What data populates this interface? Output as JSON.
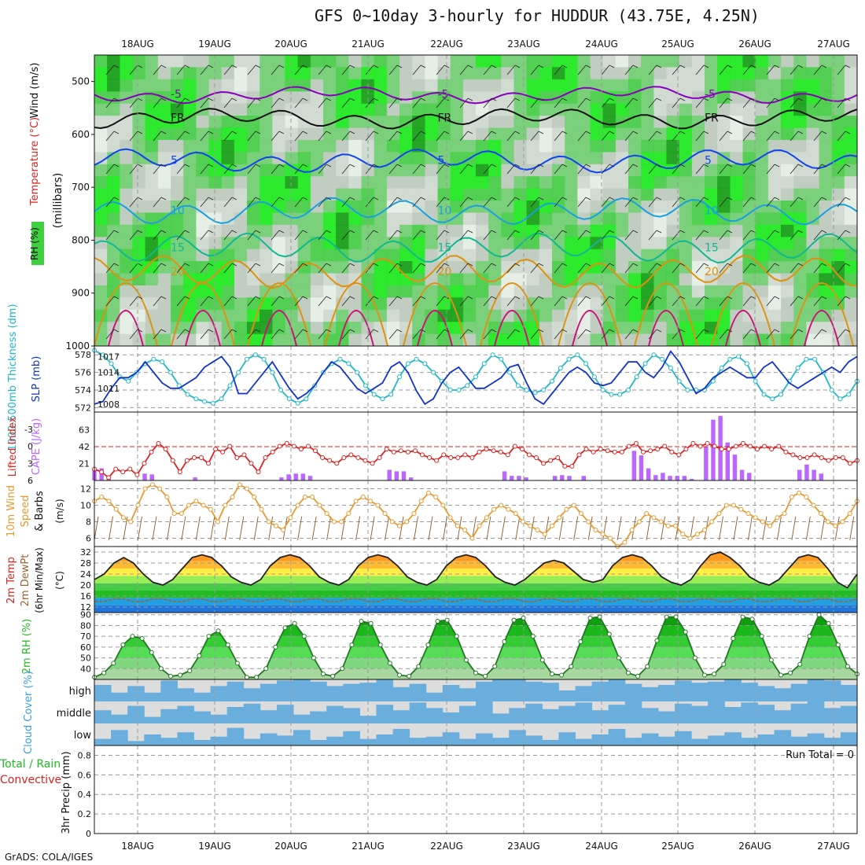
{
  "title": "GFS 0~10day 3-hourly for HUDDUR (43.75E, 4.25N)",
  "credit": "GrADS: COLA/IGES",
  "dates": [
    "18AUG",
    "19AUG",
    "20AUG",
    "21AUG",
    "22AUG",
    "23AUG",
    "24AUG",
    "25AUG",
    "26AUG",
    "27AUG"
  ],
  "chart_data": [
    {
      "type": "heatmap",
      "panel": "upper-air",
      "title": "",
      "ylabel": "(millibars)",
      "ylabel_parts": [
        "Wind (m/s)",
        "Temperature (°C)",
        "RH (%)"
      ],
      "yticks": [
        500,
        600,
        700,
        800,
        900,
        1000
      ],
      "ylim": [
        1000,
        450
      ],
      "rh_fill_colors": [
        "#ecf5ec",
        "#d3ddd3",
        "#c0ccc0",
        "#6fd16f",
        "#3fcf3f",
        "#14ee14",
        "#0a9c0a"
      ],
      "isotherms": [
        {
          "label": "-5",
          "level_mb": 525,
          "color": "#8800bb"
        },
        {
          "label": "FR",
          "level_mb": 570,
          "color": "#111111"
        },
        {
          "label": "5",
          "level_mb": 650,
          "color": "#1144ee"
        },
        {
          "label": "10",
          "level_mb": 745,
          "color": "#1aa0e0"
        },
        {
          "label": "15",
          "level_mb": 815,
          "color": "#10b890"
        },
        {
          "label": "20",
          "level_mb": 860,
          "color": "#e09010"
        }
      ]
    },
    {
      "type": "line",
      "panel": "thickness-slp",
      "ylabel_left": "1000-500mb Thickness (dm)",
      "ylabel_right": "SLP (mb)",
      "left_ticks": [
        572,
        574,
        576,
        578
      ],
      "right_ticks": [
        1008,
        1011,
        1014,
        1017
      ],
      "series": [
        {
          "name": "1000-500mb Thickness (dm)",
          "color": "#20b8c8",
          "values": [
            578.5,
            578.0,
            577.0,
            575.5,
            575.0,
            576.0,
            577.0,
            577.5,
            577.2,
            576.0,
            574.5,
            573.5,
            573.0,
            572.7,
            572.5,
            573.0,
            574.5,
            576.0,
            577.5,
            578.0,
            577.5,
            576.0,
            574.0,
            573.0,
            572.5,
            573.0,
            574.5,
            576.0,
            577.0,
            577.5,
            577.0,
            576.0,
            574.5,
            573.5,
            573.0,
            573.5,
            575.5,
            577.0,
            577.5,
            577.0,
            576.0,
            575.0,
            574.0,
            574.0,
            574.5,
            575.5,
            577.0,
            578.0,
            577.5,
            576.0,
            574.5,
            574.0,
            573.7,
            574.0,
            575.0,
            576.5,
            577.5,
            578.0,
            577.0,
            575.5,
            574.0,
            573.5,
            573.5,
            574.0,
            575.5,
            577.0,
            578.0,
            577.5,
            576.5,
            575.0,
            574.0,
            574.0,
            574.0,
            575.0,
            576.5,
            577.5,
            577.8,
            577.0,
            575.0,
            573.5,
            573.0,
            573.5,
            575.0,
            576.5,
            577.5,
            577.5,
            576.0,
            574.0,
            573.0,
            573.5,
            575.0
          ]
        },
        {
          "name": "SLP (mb)",
          "color": "#1133cc",
          "values": [
            1008.0,
            1008.5,
            1011.0,
            1013.0,
            1013.0,
            1014.0,
            1016.0,
            1014.0,
            1012.0,
            1011.0,
            1011.0,
            1012.0,
            1013.0,
            1015.0,
            1016.0,
            1017.0,
            1015.0,
            1010.0,
            1010.0,
            1012.0,
            1014.0,
            1016.0,
            1013.5,
            1011.0,
            1009.0,
            1010.0,
            1011.5,
            1014.0,
            1016.0,
            1015.0,
            1013.0,
            1011.0,
            1010.0,
            1011.0,
            1012.0,
            1015.0,
            1016.0,
            1014.0,
            1010.5,
            1008.0,
            1009.0,
            1012.0,
            1014.0,
            1015.0,
            1013.0,
            1011.0,
            1011.0,
            1012.0,
            1013.0,
            1015.0,
            1015.5,
            1012.0,
            1009.0,
            1008.0,
            1010.0,
            1012.0,
            1014.0,
            1015.0,
            1014.0,
            1012.0,
            1011.5,
            1012.0,
            1014.0,
            1016.0,
            1016.0,
            1014.0,
            1013.0,
            1015.0,
            1018.0,
            1016.0,
            1013.0,
            1010.0,
            1011.0,
            1013.0,
            1014.0,
            1015.0,
            1014.0,
            1013.0,
            1013.0,
            1015.0,
            1016.0,
            1014.0,
            1012.0,
            1011.0,
            1012.0,
            1013.0,
            1014.0,
            1015.0,
            1014.0,
            1016.0,
            1017.0
          ]
        }
      ]
    },
    {
      "type": "bar",
      "panel": "cape-li",
      "ylabel_left": "Lifted Index",
      "ylabel_right": "CAPE (J/kg)",
      "li_ticks": [
        "-3",
        "0",
        "3",
        "6"
      ],
      "cape_ticks": [
        "21",
        "42",
        "63"
      ],
      "series": [
        {
          "name": "CAPE (J/kg)",
          "color": "#bb66ff",
          "values": [
            14,
            16,
            2,
            0,
            0,
            0,
            0,
            9,
            8,
            0,
            0,
            0,
            0,
            0,
            4,
            0,
            0,
            0,
            0,
            0,
            0,
            0,
            0,
            0,
            0,
            0,
            4,
            8,
            9,
            9,
            6,
            0,
            0,
            0,
            0,
            0,
            0,
            0,
            0,
            0,
            0,
            14,
            12,
            12,
            4,
            0,
            0,
            0,
            0,
            0,
            0,
            0,
            0,
            0,
            0,
            0,
            0,
            12,
            6,
            6,
            4,
            0,
            0,
            0,
            6,
            7,
            6,
            0,
            6,
            0,
            0,
            0,
            0,
            0,
            0,
            39,
            33,
            16,
            7,
            10,
            6,
            6,
            6,
            2,
            0,
            45,
            80,
            85,
            50,
            34,
            14,
            10,
            0,
            0,
            0,
            0,
            0,
            0,
            14,
            21,
            14,
            9,
            0,
            0,
            0,
            0,
            0
          ]
        },
        {
          "name": "Lifted Index",
          "color": "#dd2222",
          "values": [
            4.0,
            4.5,
            5.5,
            4.0,
            4.5,
            4.0,
            5.0,
            3.0,
            1.0,
            -0.5,
            0.5,
            2.5,
            4.5,
            2.5,
            2.0,
            2.0,
            3.0,
            0.5,
            1.0,
            0.0,
            2.0,
            1.5,
            3.0,
            4.5,
            2.0,
            1.0,
            0.0,
            -0.5,
            0.0,
            0.5,
            0.0,
            0.8,
            2.0,
            2.5,
            3.0,
            2.0,
            1.5,
            2.0,
            2.5,
            3.0,
            2.0,
            0.5,
            1.0,
            0.8,
            1.0,
            0.8,
            1.5,
            2.0,
            2.5,
            1.5,
            2.0,
            2.0,
            1.5,
            2.0,
            1.0,
            0.5,
            0.8,
            1.0,
            1.5,
            0.0,
            0.5,
            1.5,
            2.0,
            3.0,
            2.5,
            2.0,
            3.5,
            3.5,
            1.5,
            0.5,
            1.0,
            0.5,
            0.8,
            1.0,
            1.0,
            0.0,
            -0.5,
            1.0,
            0.8,
            0.5,
            0.0,
            1.0,
            1.5,
            0.5,
            -0.5,
            0.0,
            -0.5,
            0.0,
            0.5,
            0.5,
            0.0,
            -0.5,
            0.0,
            0.5,
            0.0,
            0.5,
            0.0,
            1.0,
            1.5,
            2.0,
            2.0,
            1.5,
            2.0,
            2.5,
            2.0,
            2.0,
            3.0,
            2.5
          ]
        }
      ]
    },
    {
      "type": "line",
      "panel": "wind",
      "ylabel": "10m Wind Speed & Barbs (m/s)",
      "ylabel_parts": [
        "10m Wind",
        "Speed",
        "& Barbs",
        "(m/s)"
      ],
      "yticks": [
        6,
        8,
        10,
        12
      ],
      "ylim": [
        5,
        13
      ],
      "series": [
        {
          "name": "10m Wind Speed",
          "color": "#e89a30",
          "values": [
            10.5,
            11.0,
            10.5,
            9.5,
            8.5,
            8.0,
            10.0,
            12.0,
            12.5,
            12.0,
            11.0,
            9.0,
            9.0,
            10.0,
            10.5,
            10.0,
            9.5,
            8.0,
            10.0,
            11.0,
            12.5,
            12.0,
            11.0,
            9.5,
            8.0,
            7.5,
            7.0,
            8.5,
            10.0,
            11.0,
            11.0,
            10.0,
            9.0,
            8.0,
            8.0,
            9.0,
            10.5,
            11.0,
            10.5,
            10.0,
            9.0,
            8.0,
            7.5,
            8.0,
            9.0,
            10.5,
            11.5,
            11.0,
            10.0,
            8.5,
            7.5,
            7.0,
            6.0,
            7.5,
            8.5,
            9.5,
            10.0,
            9.5,
            9.0,
            8.0,
            7.5,
            7.0,
            6.5,
            7.5,
            8.5,
            9.5,
            10.0,
            9.0,
            8.0,
            7.0,
            6.5,
            6.0,
            5.0,
            5.5,
            7.0,
            8.0,
            9.0,
            8.5,
            8.0,
            7.5,
            7.5,
            6.5,
            6.0,
            6.5,
            7.0,
            8.0,
            9.0,
            10.0,
            10.0,
            9.5,
            9.0,
            8.5,
            8.0,
            7.5,
            8.5,
            9.0,
            11.0,
            11.5,
            11.0,
            10.0,
            9.0,
            8.0,
            7.5,
            8.0,
            9.0,
            10.5
          ]
        }
      ]
    },
    {
      "type": "line",
      "panel": "temperature",
      "ylabel": "2m Temp 2m DewPt (6hr Min/Max) (°C)",
      "ylabel_parts": [
        "2m Temp",
        "2m DewPt",
        "(6hr Min/Max)",
        "(°C)"
      ],
      "yticks": [
        12,
        16,
        20,
        24,
        28,
        32
      ],
      "ylim": [
        10,
        34
      ],
      "band_colors": [
        "#1f77dd",
        "#20a0e0",
        "#22bb22",
        "#44cc44",
        "#99ee55",
        "#ffee44",
        "#ffbb33",
        "#ff9922",
        "#ee6611"
      ],
      "series": [
        {
          "name": "2m Temp",
          "color": "#222222",
          "values": [
            22,
            24,
            28,
            30,
            28,
            24,
            21,
            20,
            22,
            26,
            30,
            31,
            30,
            27,
            23,
            21,
            20,
            22,
            27,
            30,
            31,
            30,
            27,
            23,
            21,
            20,
            22,
            27,
            30,
            31,
            30,
            27,
            23,
            21,
            20,
            22,
            27,
            30,
            31,
            30,
            27,
            23,
            21,
            20,
            22,
            25,
            28,
            29,
            28,
            25,
            22,
            21,
            22,
            27,
            30,
            31,
            30,
            27,
            23,
            21,
            20,
            22,
            27,
            31,
            32,
            30,
            27,
            23,
            21,
            20,
            22,
            26,
            30,
            31,
            30,
            26,
            21,
            19,
            24
          ]
        },
        {
          "name": "2m DewPt",
          "color": "#996633",
          "values": [
            14,
            14,
            15,
            15,
            14,
            14,
            15,
            15,
            14,
            14,
            15,
            15,
            14,
            14,
            15,
            15,
            14,
            14,
            15,
            15,
            14,
            14,
            15,
            15,
            14,
            14,
            15,
            15,
            14,
            14,
            15,
            15,
            14,
            14,
            15,
            15,
            14,
            14,
            15,
            15,
            14,
            14,
            15,
            15,
            14,
            14,
            15,
            15,
            14,
            14,
            15,
            15,
            14,
            14,
            15,
            15,
            14,
            14,
            15,
            15,
            14,
            14,
            15,
            15,
            14,
            14,
            15,
            15,
            14,
            14,
            15,
            15,
            14,
            14,
            15,
            15,
            14,
            14,
            15
          ]
        }
      ]
    },
    {
      "type": "area",
      "panel": "rh",
      "ylabel": "2m RH (%)",
      "yticks": [
        40,
        50,
        60,
        70,
        80,
        90
      ],
      "ylim": [
        30,
        92
      ],
      "series": [
        {
          "name": "2m RH",
          "color": "#22bb22",
          "values": [
            32,
            36,
            45,
            62,
            70,
            68,
            55,
            40,
            33,
            34,
            38,
            52,
            70,
            75,
            62,
            45,
            32,
            32,
            40,
            60,
            78,
            82,
            70,
            50,
            35,
            33,
            40,
            62,
            84,
            82,
            62,
            45,
            34,
            33,
            42,
            62,
            84,
            85,
            70,
            48,
            36,
            33,
            42,
            65,
            85,
            87,
            70,
            48,
            35,
            34,
            42,
            65,
            87,
            88,
            72,
            50,
            36,
            33,
            42,
            66,
            88,
            88,
            74,
            50,
            34,
            35,
            44,
            68,
            88,
            86,
            70,
            48,
            34,
            36,
            44,
            70,
            90,
            82,
            62,
            42,
            35
          ]
        }
      ]
    },
    {
      "type": "area",
      "panel": "cloud",
      "ylabel": "Cloud Cover (%)",
      "row_labels": [
        "high",
        "middle",
        "low"
      ],
      "series": [
        {
          "name": "high",
          "values": [
            75,
            40,
            70,
            40,
            95,
            60,
            40,
            70,
            90,
            60,
            80,
            95,
            100,
            90,
            70,
            80,
            85,
            100,
            65,
            80,
            40,
            75,
            60,
            90,
            100,
            100,
            90,
            85,
            50,
            70,
            90,
            100,
            80,
            65,
            75,
            95,
            85,
            90,
            100,
            85,
            70,
            60,
            80,
            100,
            95,
            75
          ]
        },
        {
          "name": "middle",
          "values": [
            60,
            40,
            80,
            30,
            65,
            80,
            55,
            40,
            75,
            90,
            60,
            85,
            40,
            55,
            80,
            70,
            35,
            85,
            60,
            95,
            70,
            50,
            80,
            100,
            45,
            70,
            90,
            65,
            80,
            95,
            60,
            85,
            100,
            70,
            55,
            90,
            80,
            100,
            75,
            95,
            85,
            60,
            90,
            100,
            70,
            80
          ]
        },
        {
          "name": "low",
          "values": [
            30,
            70,
            20,
            50,
            35,
            60,
            25,
            40,
            80,
            30,
            55,
            45,
            70,
            25,
            40,
            65,
            30,
            50,
            75,
            35,
            40,
            60,
            30,
            55,
            35,
            70,
            45,
            25,
            60,
            30,
            50,
            75,
            35,
            55,
            40,
            65,
            30,
            45,
            60,
            35,
            50,
            70,
            40,
            55,
            35,
            60
          ]
        }
      ]
    },
    {
      "type": "bar",
      "panel": "precip",
      "ylabel": "3hr Precip (mm)",
      "legend": [
        "Total / Rain",
        "Convective"
      ],
      "annotation": "Run Total = 0",
      "yticks": [
        "0",
        "0.2",
        "0.4",
        "0.6",
        "0.8"
      ],
      "ylim": [
        0,
        0.9
      ],
      "values": []
    }
  ]
}
